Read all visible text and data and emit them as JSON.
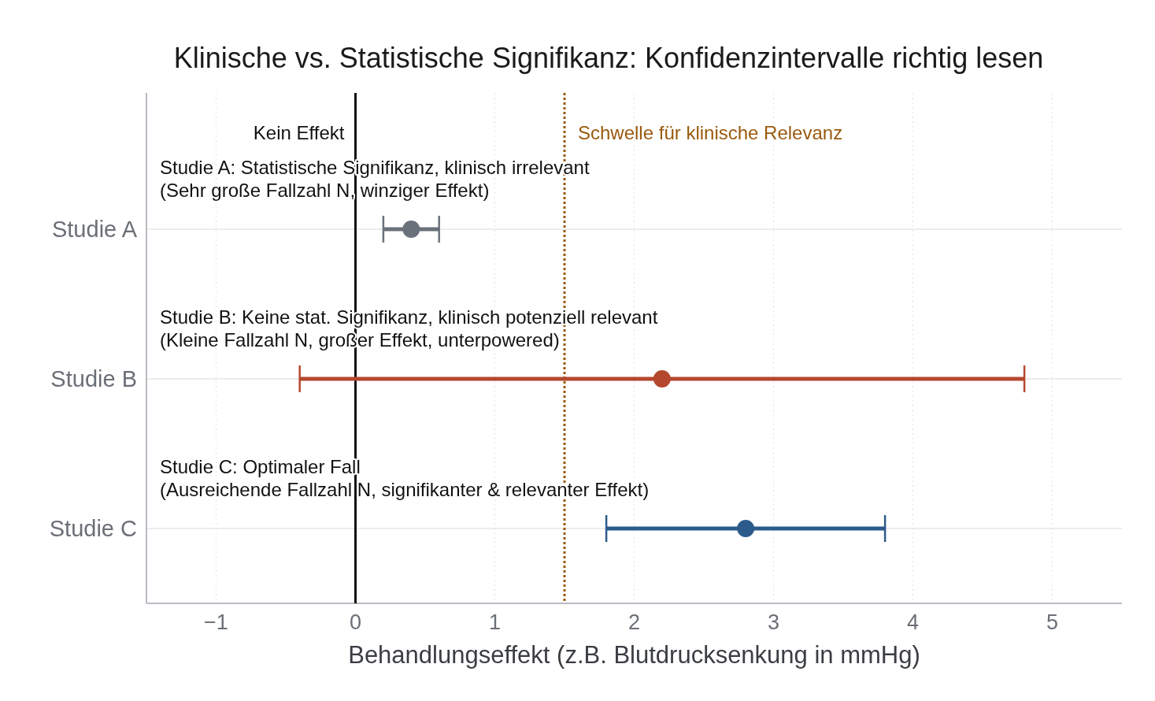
{
  "chart_data": {
    "type": "scatter",
    "orientation": "horizontal",
    "title": "Klinische vs. Statistische Signifikanz: Konfidenzintervalle richtig lesen",
    "xlabel": "Behandlungseffekt (z.B. Blutdrucksenkung in mmHg)",
    "categories": [
      "Studie A",
      "Studie B",
      "Studie C"
    ],
    "values": [
      0.4,
      2.2,
      2.8
    ],
    "errors": [
      [
        0.2,
        0.6
      ],
      [
        -0.4,
        4.8
      ],
      [
        1.8,
        3.8
      ]
    ],
    "colors": [
      "#6b717b",
      "#b4482e",
      "#2b5b8a"
    ],
    "xlim": [
      -1.5,
      5.5
    ],
    "xticks": [
      {
        "value": -1,
        "label": "−1"
      },
      0,
      1,
      2,
      3,
      4,
      5
    ],
    "grid": true,
    "marker": "circle",
    "ref_lines": [
      {
        "axis": "x",
        "value": 0,
        "label": "Kein Effekt",
        "color": "#111111",
        "line_style": "solid"
      },
      {
        "axis": "x",
        "value": 1.5,
        "label": "Schwelle für klinische Relevanz",
        "color": "#9a5a0e",
        "line_style": "dotted"
      }
    ],
    "annotations": [
      "Studie A: Statistische Signifikanz, klinisch irrelevant\n(Sehr große Fallzahl N, winziger Effekt)",
      "Studie B: Keine stat. Signifikanz, klinisch potenziell relevant\n(Kleine Fallzahl N, großer Effekt, unterpowered)",
      "Studie C: Optimaler Fall\n(Ausreichende Fallzahl N, signifikanter & relevanter Effekt)"
    ]
  }
}
